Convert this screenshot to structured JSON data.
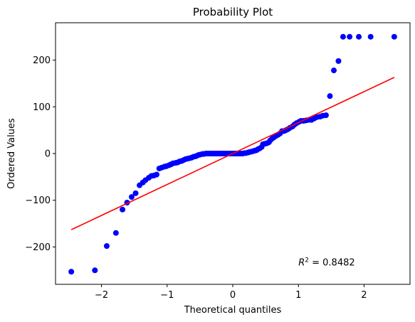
{
  "chart_data": {
    "type": "scatter",
    "title": "Probability Plot",
    "xlabel": "Theoretical quantiles",
    "ylabel": "Ordered Values",
    "xlim": [
      -2.7,
      2.7
    ],
    "ylim": [
      -280,
      280
    ],
    "xticks": [
      -2,
      -1,
      0,
      1,
      2
    ],
    "yticks": [
      -200,
      -100,
      0,
      100,
      200
    ],
    "xtick_labels": [
      "−2",
      "−1",
      "0",
      "1",
      "2"
    ],
    "ytick_labels": [
      "−200",
      "−100",
      "0",
      "100",
      "200"
    ],
    "grid": false,
    "annotation": {
      "r2_prefix": "R",
      "r2_sup": "2",
      "r2_value": " = 0.8482",
      "x": 1.0,
      "y": -240
    },
    "fit_line": {
      "color": "#ff0000",
      "x": [
        -2.46,
        2.46
      ],
      "y": [
        -163,
        163
      ]
    },
    "series": [
      {
        "name": "",
        "color": "#0000ff",
        "x": [
          -2.46,
          -2.1,
          -1.92,
          -1.78,
          -1.68,
          -1.61,
          -1.54,
          -1.48,
          -1.42,
          -1.37,
          -1.33,
          -1.28,
          -1.24,
          -1.2,
          -1.16,
          -1.12,
          -1.08,
          -1.04,
          -1.01,
          -0.97,
          -0.94,
          -0.91,
          -0.87,
          -0.84,
          -0.81,
          -0.78,
          -0.75,
          -0.72,
          -0.69,
          -0.66,
          -0.63,
          -0.6,
          -0.57,
          -0.55,
          -0.52,
          -0.49,
          -0.46,
          -0.44,
          -0.41,
          -0.38,
          -0.36,
          -0.33,
          -0.31,
          -0.28,
          -0.25,
          -0.23,
          -0.2,
          -0.18,
          -0.15,
          -0.13,
          -0.1,
          -0.08,
          -0.05,
          -0.03,
          0.0,
          0.03,
          0.05,
          0.08,
          0.1,
          0.13,
          0.15,
          0.18,
          0.2,
          0.23,
          0.25,
          0.28,
          0.31,
          0.33,
          0.36,
          0.38,
          0.41,
          0.44,
          0.46,
          0.49,
          0.52,
          0.55,
          0.57,
          0.6,
          0.63,
          0.66,
          0.69,
          0.72,
          0.75,
          0.78,
          0.81,
          0.84,
          0.87,
          0.91,
          0.94,
          0.97,
          1.01,
          1.04,
          1.08,
          1.12,
          1.16,
          1.2,
          1.24,
          1.28,
          1.33,
          1.37,
          1.42,
          1.48,
          1.54,
          1.61,
          1.68,
          1.78,
          1.92,
          2.1,
          2.46
        ],
        "y": [
          -253,
          -250,
          -198,
          -170,
          -120,
          -105,
          -93,
          -85,
          -68,
          -62,
          -57,
          -52,
          -48,
          -47,
          -45,
          -32,
          -30,
          -28,
          -27,
          -25,
          -23,
          -21,
          -20,
          -19,
          -17,
          -16,
          -14,
          -12,
          -11,
          -10,
          -9,
          -7,
          -6,
          -5,
          -3,
          -2,
          -1,
          -1,
          0,
          0,
          0,
          0,
          0,
          0,
          0,
          0,
          0,
          0,
          0,
          0,
          0,
          0,
          0,
          0,
          0,
          0,
          0,
          0,
          0,
          0,
          0,
          1,
          1,
          2,
          3,
          4,
          5,
          6,
          7,
          9,
          11,
          14,
          20,
          21,
          22,
          24,
          28,
          32,
          35,
          38,
          40,
          43,
          48,
          48,
          50,
          52,
          55,
          58,
          62,
          65,
          68,
          70,
          70,
          71,
          72,
          72,
          75,
          78,
          79,
          81,
          82,
          123,
          178,
          198,
          250,
          250,
          250,
          250,
          250
        ]
      }
    ]
  }
}
